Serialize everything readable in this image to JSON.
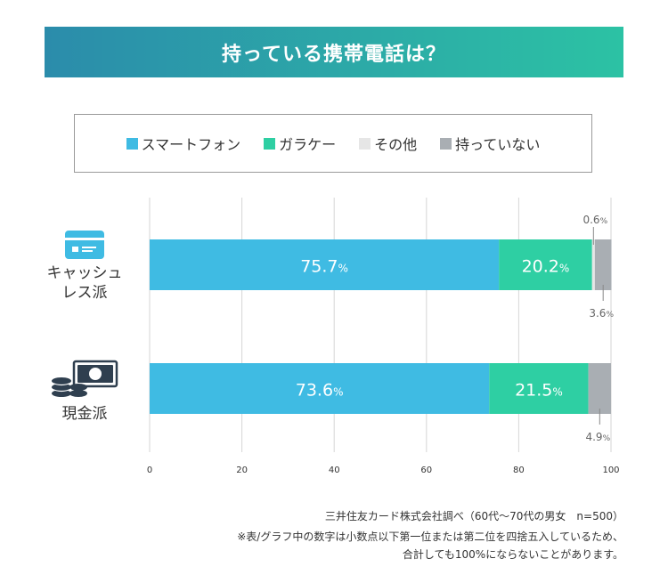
{
  "banner": {
    "title": "持っている携帯電話は？"
  },
  "legend": [
    {
      "label": "スマートフォン",
      "color": "#3fbbe3"
    },
    {
      "label": "ガラケー",
      "color": "#2ecfa3"
    },
    {
      "label": "その他",
      "color": "#e6e6e6"
    },
    {
      "label": "持っていない",
      "color": "#a9aeb3"
    }
  ],
  "categories": [
    {
      "label": "キャッシュ\nレス派",
      "icon": "credit-card-icon"
    },
    {
      "label": "現金派",
      "icon": "cash-and-coins-icon"
    }
  ],
  "chart_data": {
    "type": "bar",
    "orientation": "horizontal",
    "stacked": true,
    "categories": [
      "キャッシュレス派",
      "現金派"
    ],
    "series": [
      {
        "name": "スマートフォン",
        "values": [
          75.7,
          73.6
        ],
        "color": "#3fbbe3"
      },
      {
        "name": "ガラケー",
        "values": [
          20.2,
          21.5
        ],
        "color": "#2ecfa3"
      },
      {
        "name": "その他",
        "values": [
          0.6,
          0
        ],
        "color": "#e6e6e6"
      },
      {
        "name": "持っていない",
        "values": [
          3.6,
          4.9
        ],
        "color": "#a9aeb3"
      }
    ],
    "value_labels": [
      {
        "series": 0,
        "category": 0,
        "number": "75.7",
        "unit": "%"
      },
      {
        "series": 1,
        "category": 0,
        "number": "20.2",
        "unit": "%"
      },
      {
        "series": 2,
        "category": 0,
        "number": "0.6",
        "unit": "%"
      },
      {
        "series": 3,
        "category": 0,
        "number": "3.6",
        "unit": "%"
      },
      {
        "series": 0,
        "category": 1,
        "number": "73.6",
        "unit": "%"
      },
      {
        "series": 1,
        "category": 1,
        "number": "21.5",
        "unit": "%"
      },
      {
        "series": 3,
        "category": 1,
        "number": "4.9",
        "unit": "%"
      }
    ],
    "xlim": [
      0,
      100
    ],
    "xticks": [
      0,
      20,
      40,
      60,
      80,
      100
    ],
    "grid": true,
    "legend_position": "top"
  },
  "footnotes": [
    "三井住友カード株式会社調べ（60代〜70代の男女　n=500）",
    "※表/グラフ中の数字は小数点以下第一位または第二位を四捨五入しているため、",
    "合計しても100%にならないことがあります。"
  ]
}
